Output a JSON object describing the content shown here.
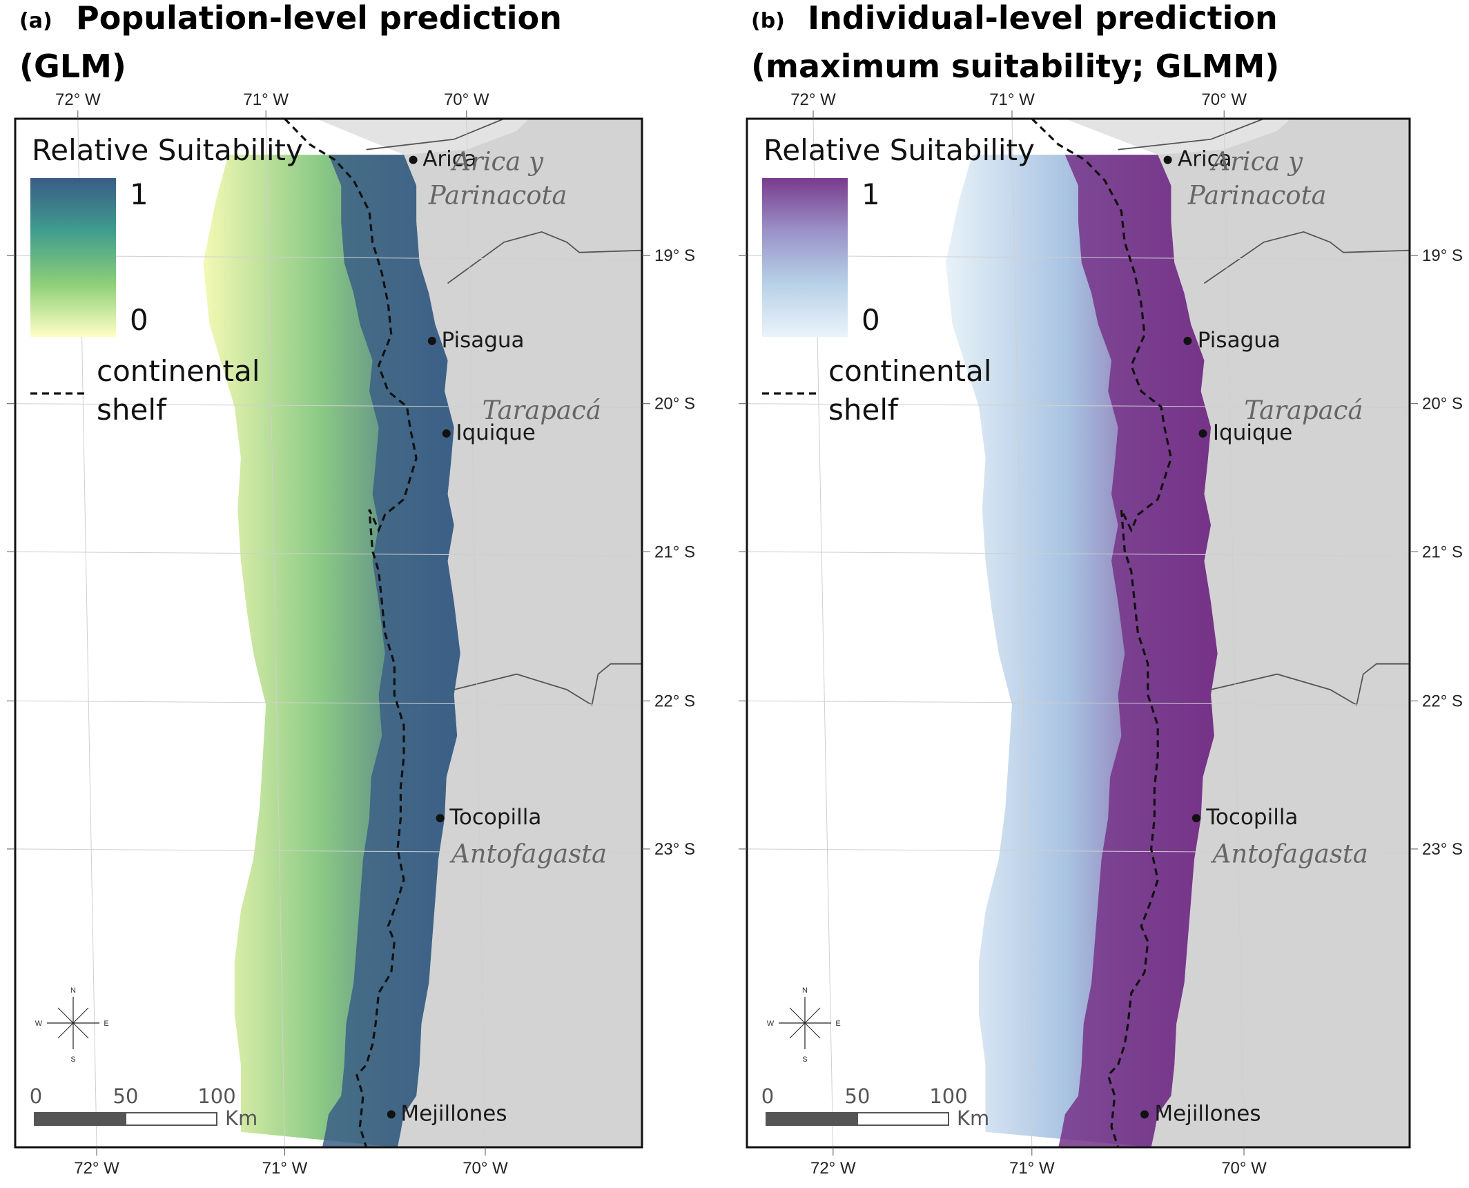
{
  "panels": [
    {
      "label": "(a)",
      "title_line1": "Population-level prediction",
      "title_line2": "(GLM)",
      "legend": {
        "title": "Relative Suitability",
        "max_label": "1",
        "min_label": "0",
        "shelf_label_line1": "continental",
        "shelf_label_line2": "shelf",
        "ramp_colors": [
          "#ffffc8",
          "#8ecf78",
          "#3f9c8e",
          "#3a5c86"
        ]
      },
      "core_color": "#3c5f86",
      "offshore_color": "#f4f9b4",
      "mid_color": "#8ccb86"
    },
    {
      "label": "(b)",
      "title_line1": "Individual-level prediction",
      "title_line2": "(maximum suitability; GLMM)",
      "legend": {
        "title": "Relative Suitability",
        "max_label": "1",
        "min_label": "0",
        "shelf_label_line1": "continental",
        "shelf_label_line2": "shelf",
        "ramp_colors": [
          "#eaf3fa",
          "#b8d2e8",
          "#9a92c8",
          "#7a3a8c"
        ]
      },
      "core_color": "#763287",
      "offshore_color": "#e8f2f8",
      "mid_color": "#a9c3e2"
    }
  ],
  "axis_labels": {
    "longitude": [
      "72° W",
      "71° W",
      "70° W"
    ],
    "latitude": [
      "19° S",
      "20° S",
      "21° S",
      "22° S",
      "23° S"
    ]
  },
  "cities": [
    "Arica",
    "Pisagua",
    "Iquique",
    "Tocopilla",
    "Mejillones"
  ],
  "regions": {
    "arica_line1": "Arica y",
    "arica_line2": "Parinacota",
    "tarapaca": "Tarapacá",
    "antofagasta": "Antofagasta"
  },
  "compass": {
    "n": "N",
    "s": "S",
    "e": "E",
    "w": "W"
  },
  "scale_bar": {
    "ticks": [
      "0",
      "50",
      "100"
    ],
    "unit": "Km"
  },
  "colors": {
    "land": "#d3d3d3",
    "land_top": "#e3e3e3",
    "border": "#555555",
    "frame": "#111111",
    "shelf_line": "#111111"
  }
}
